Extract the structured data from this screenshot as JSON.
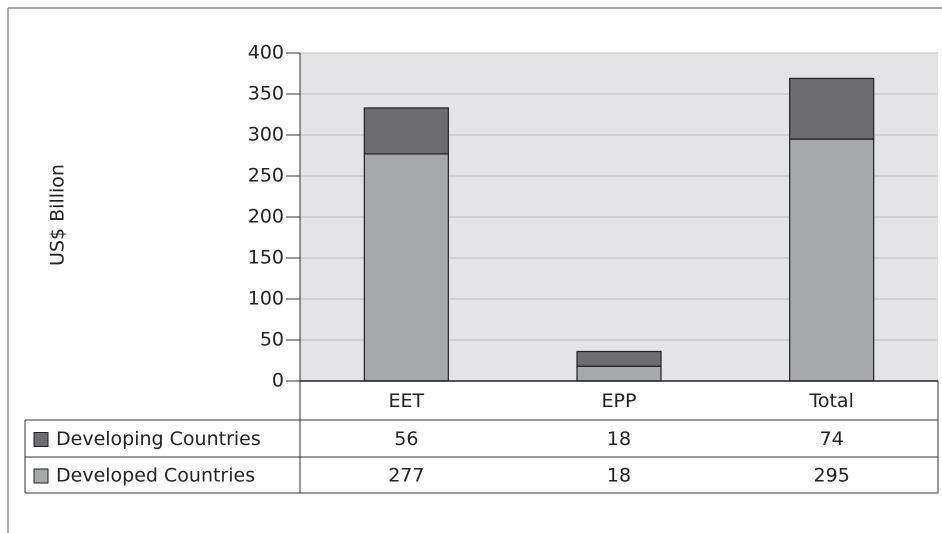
{
  "chart_data": {
    "type": "stacked_bar",
    "ylabel": "US$ Billion",
    "categories": [
      "EET",
      "EPP",
      "Total"
    ],
    "series": [
      {
        "name": "Developing Countries",
        "color": "#6d6d70",
        "values": [
          56,
          18,
          74
        ]
      },
      {
        "name": "Developed Countries",
        "color": "#a7a8ab",
        "values": [
          277,
          18,
          295
        ]
      }
    ],
    "ylim": [
      0,
      400
    ],
    "yticks": [
      0,
      50,
      100,
      150,
      200,
      250,
      300,
      350,
      400
    ],
    "grid": true
  }
}
